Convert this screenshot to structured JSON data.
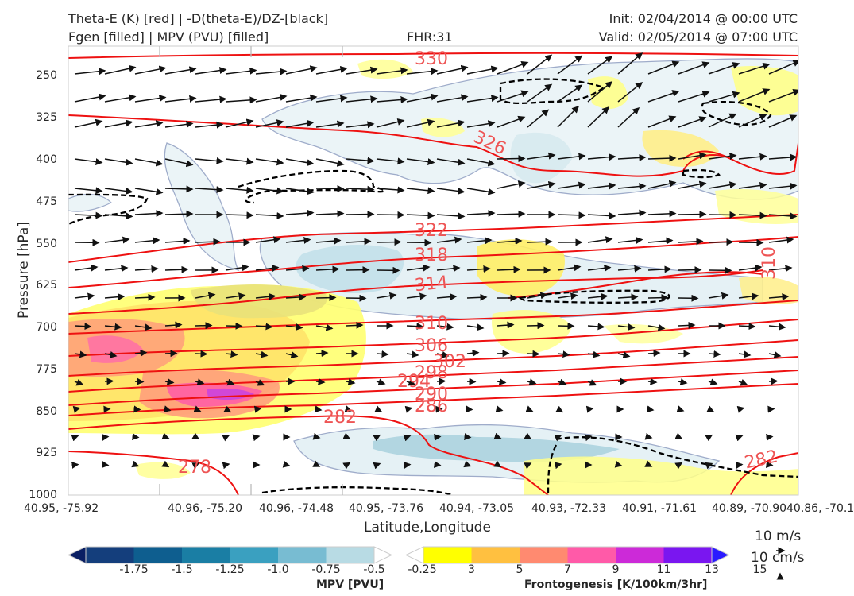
{
  "header": {
    "title_left_line1": "Theta-E (K) [red] | -D(theta-E)/DZ-[black]",
    "title_left_line2": "Fgen [filled] | MPV (PVU) [filled]",
    "fhr": "FHR:31",
    "init": "Init: 02/04/2014 @ 00:00 UTC",
    "valid": "Valid: 02/05/2014 @ 07:00 UTC"
  },
  "colors": {
    "theta_e_line": "#ee1111",
    "ddz_line": "#000000",
    "wind_arrow": "#111111",
    "contour_label": "#ee5555"
  },
  "chart_data": {
    "type": "cross-section",
    "title": "Theta-E (K) [red] | -D(theta-E)/DZ-[black] / Fgen [filled] | MPV (PVU) [filled]",
    "xlabel": "Latitude,Longitude",
    "ylabel": "Pressure [hPa]",
    "ylim": [
      1000,
      190
    ],
    "y_scale": "pressure (inverted)",
    "y_ticks": [
      "250",
      "325",
      "400",
      "475",
      "550",
      "625",
      "700",
      "775",
      "850",
      "925",
      "1000"
    ],
    "x_ticks": [
      "40.95, -75.92",
      "40.96, -75.20",
      "40.96, -74.48",
      "40.95, -73.76",
      "40.94, -73.05",
      "40.93, -72.33",
      "40.91, -71.61",
      "40.89, -70.90",
      "40.86, -70.1"
    ],
    "theta_e_contour_labels": [
      "330",
      "326",
      "322",
      "318",
      "314",
      "310",
      "306",
      "302",
      "298",
      "294",
      "290",
      "286",
      "282",
      "278",
      "282",
      "310"
    ],
    "wind_reference": {
      "label_1": "10 m/s",
      "label_2": "10 cm/s"
    },
    "grid": false
  },
  "colorbars": {
    "mpv": {
      "label": "MPV [PVU]",
      "ticks": [
        "-1.75",
        "-1.5",
        "-1.25",
        "-1.0",
        "-0.75",
        "-0.5",
        "-0.25"
      ],
      "colors": [
        "#0a1f63",
        "#143e7c",
        "#0e5e8f",
        "#1a7ea4",
        "#3aa0c0",
        "#78bcd2",
        "#b8dbe4",
        "#ffffff"
      ]
    },
    "fgen": {
      "label": "Frontogenesis [K/100km/3hr]",
      "ticks": [
        "3",
        "5",
        "7",
        "9",
        "11",
        "13",
        "15"
      ],
      "colors": [
        "#ffffff",
        "#ffff00",
        "#ffc040",
        "#ff8a70",
        "#ff5aa8",
        "#cc2ad8",
        "#7a16f0",
        "#2a1aff"
      ]
    }
  }
}
